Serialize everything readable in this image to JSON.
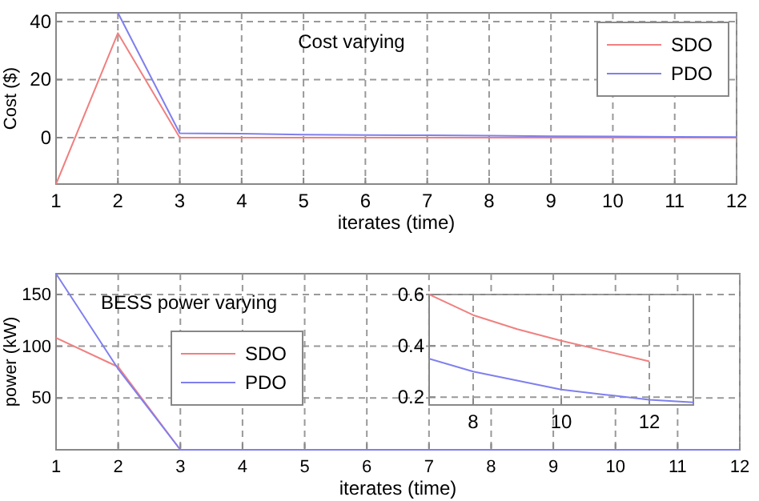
{
  "chart_data": [
    {
      "type": "line",
      "title": "Cost varying",
      "xlabel": "iterates (time)",
      "ylabel": "Cost ($)",
      "x": [
        1,
        2,
        3,
        4,
        5,
        6,
        7,
        8,
        9,
        10,
        11,
        12
      ],
      "xlim": [
        1,
        12
      ],
      "xticks": [
        1,
        2,
        3,
        4,
        5,
        6,
        7,
        8,
        9,
        10,
        11,
        12
      ],
      "ylim": [
        -16,
        43
      ],
      "yticks": [
        0,
        20,
        40
      ],
      "grid": true,
      "legend": "top right",
      "series": [
        {
          "name": "SDO",
          "color": "#f08080",
          "values": [
            -16,
            36,
            0,
            0,
            0,
            0,
            0,
            0,
            0,
            0,
            0,
            0
          ]
        },
        {
          "name": "PDO",
          "color": "#7f7fef",
          "values": [
            null,
            43,
            1.5,
            1.4,
            1,
            0.9,
            0.8,
            0.7,
            0.5,
            0.4,
            0.3,
            0.2
          ]
        }
      ]
    },
    {
      "type": "line",
      "title": "BESS power varying",
      "xlabel": "iterates (time)",
      "ylabel": "power (kW)",
      "x": [
        1,
        2,
        3,
        4,
        5,
        6,
        7,
        8,
        9,
        10,
        11,
        12
      ],
      "xlim": [
        1,
        12
      ],
      "xticks": [
        1,
        2,
        3,
        4,
        5,
        6,
        7,
        8,
        9,
        10,
        11,
        12
      ],
      "ylim": [
        0,
        170
      ],
      "yticks": [
        50,
        100,
        150
      ],
      "grid": true,
      "legend": "left",
      "series": [
        {
          "name": "SDO",
          "color": "#f08080",
          "values": [
            108,
            80,
            0,
            null,
            null,
            null,
            null,
            null,
            null,
            null,
            null,
            null
          ]
        },
        {
          "name": "PDO",
          "color": "#7f7fef",
          "values": [
            170,
            78,
            0,
            0,
            0,
            0,
            0,
            0,
            0,
            0,
            0,
            0
          ]
        }
      ]
    },
    {
      "type": "line",
      "x": [
        7,
        8,
        9,
        10,
        11,
        12,
        13
      ],
      "xlim": [
        7,
        13
      ],
      "xticks": [
        8,
        10,
        12
      ],
      "ylim": [
        0.17,
        0.6
      ],
      "yticks": [
        0.2,
        0.4,
        0.6
      ],
      "grid": true,
      "series": [
        {
          "color": "#f08080",
          "values": [
            0.6,
            0.52,
            0.465,
            0.42,
            0.38,
            0.34,
            null
          ]
        },
        {
          "color": "#7f7fef",
          "values": [
            0.35,
            0.3,
            0.265,
            0.23,
            0.21,
            0.19,
            0.18
          ]
        }
      ]
    }
  ]
}
